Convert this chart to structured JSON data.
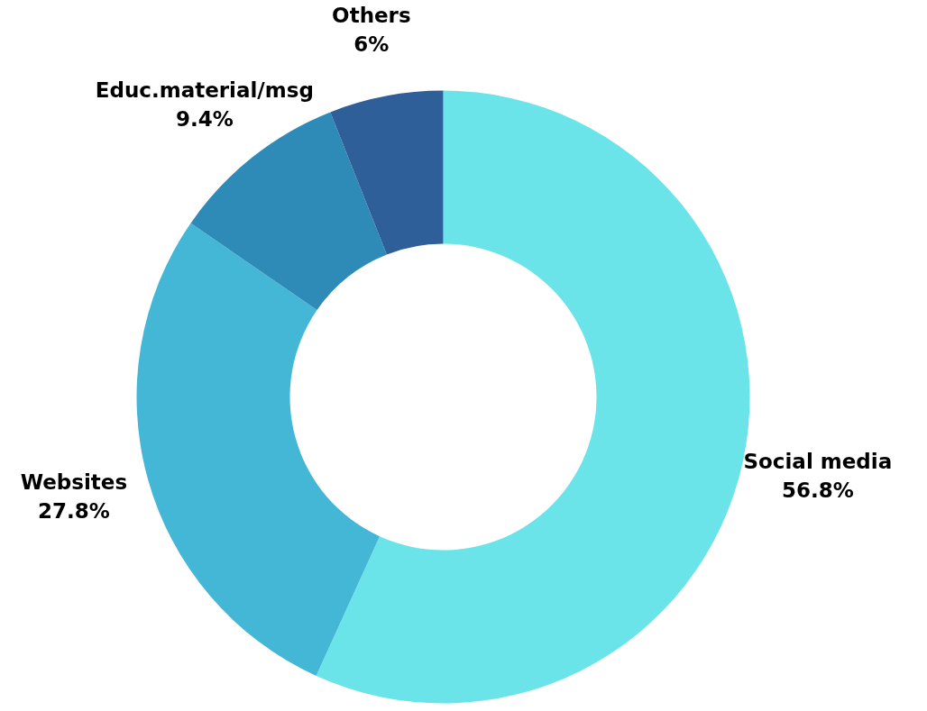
{
  "chart_data": {
    "type": "donut",
    "categories": [
      "Social media",
      "Websites",
      "Educ.material/msg",
      "Others"
    ],
    "values": [
      56.8,
      27.8,
      9.4,
      6
    ],
    "colors": [
      "#6ae4e8",
      "#43b7d5",
      "#2e8bb8",
      "#2e5f98"
    ],
    "value_labels": [
      "56.8%",
      "27.8%",
      "9.4%",
      "6%"
    ]
  }
}
